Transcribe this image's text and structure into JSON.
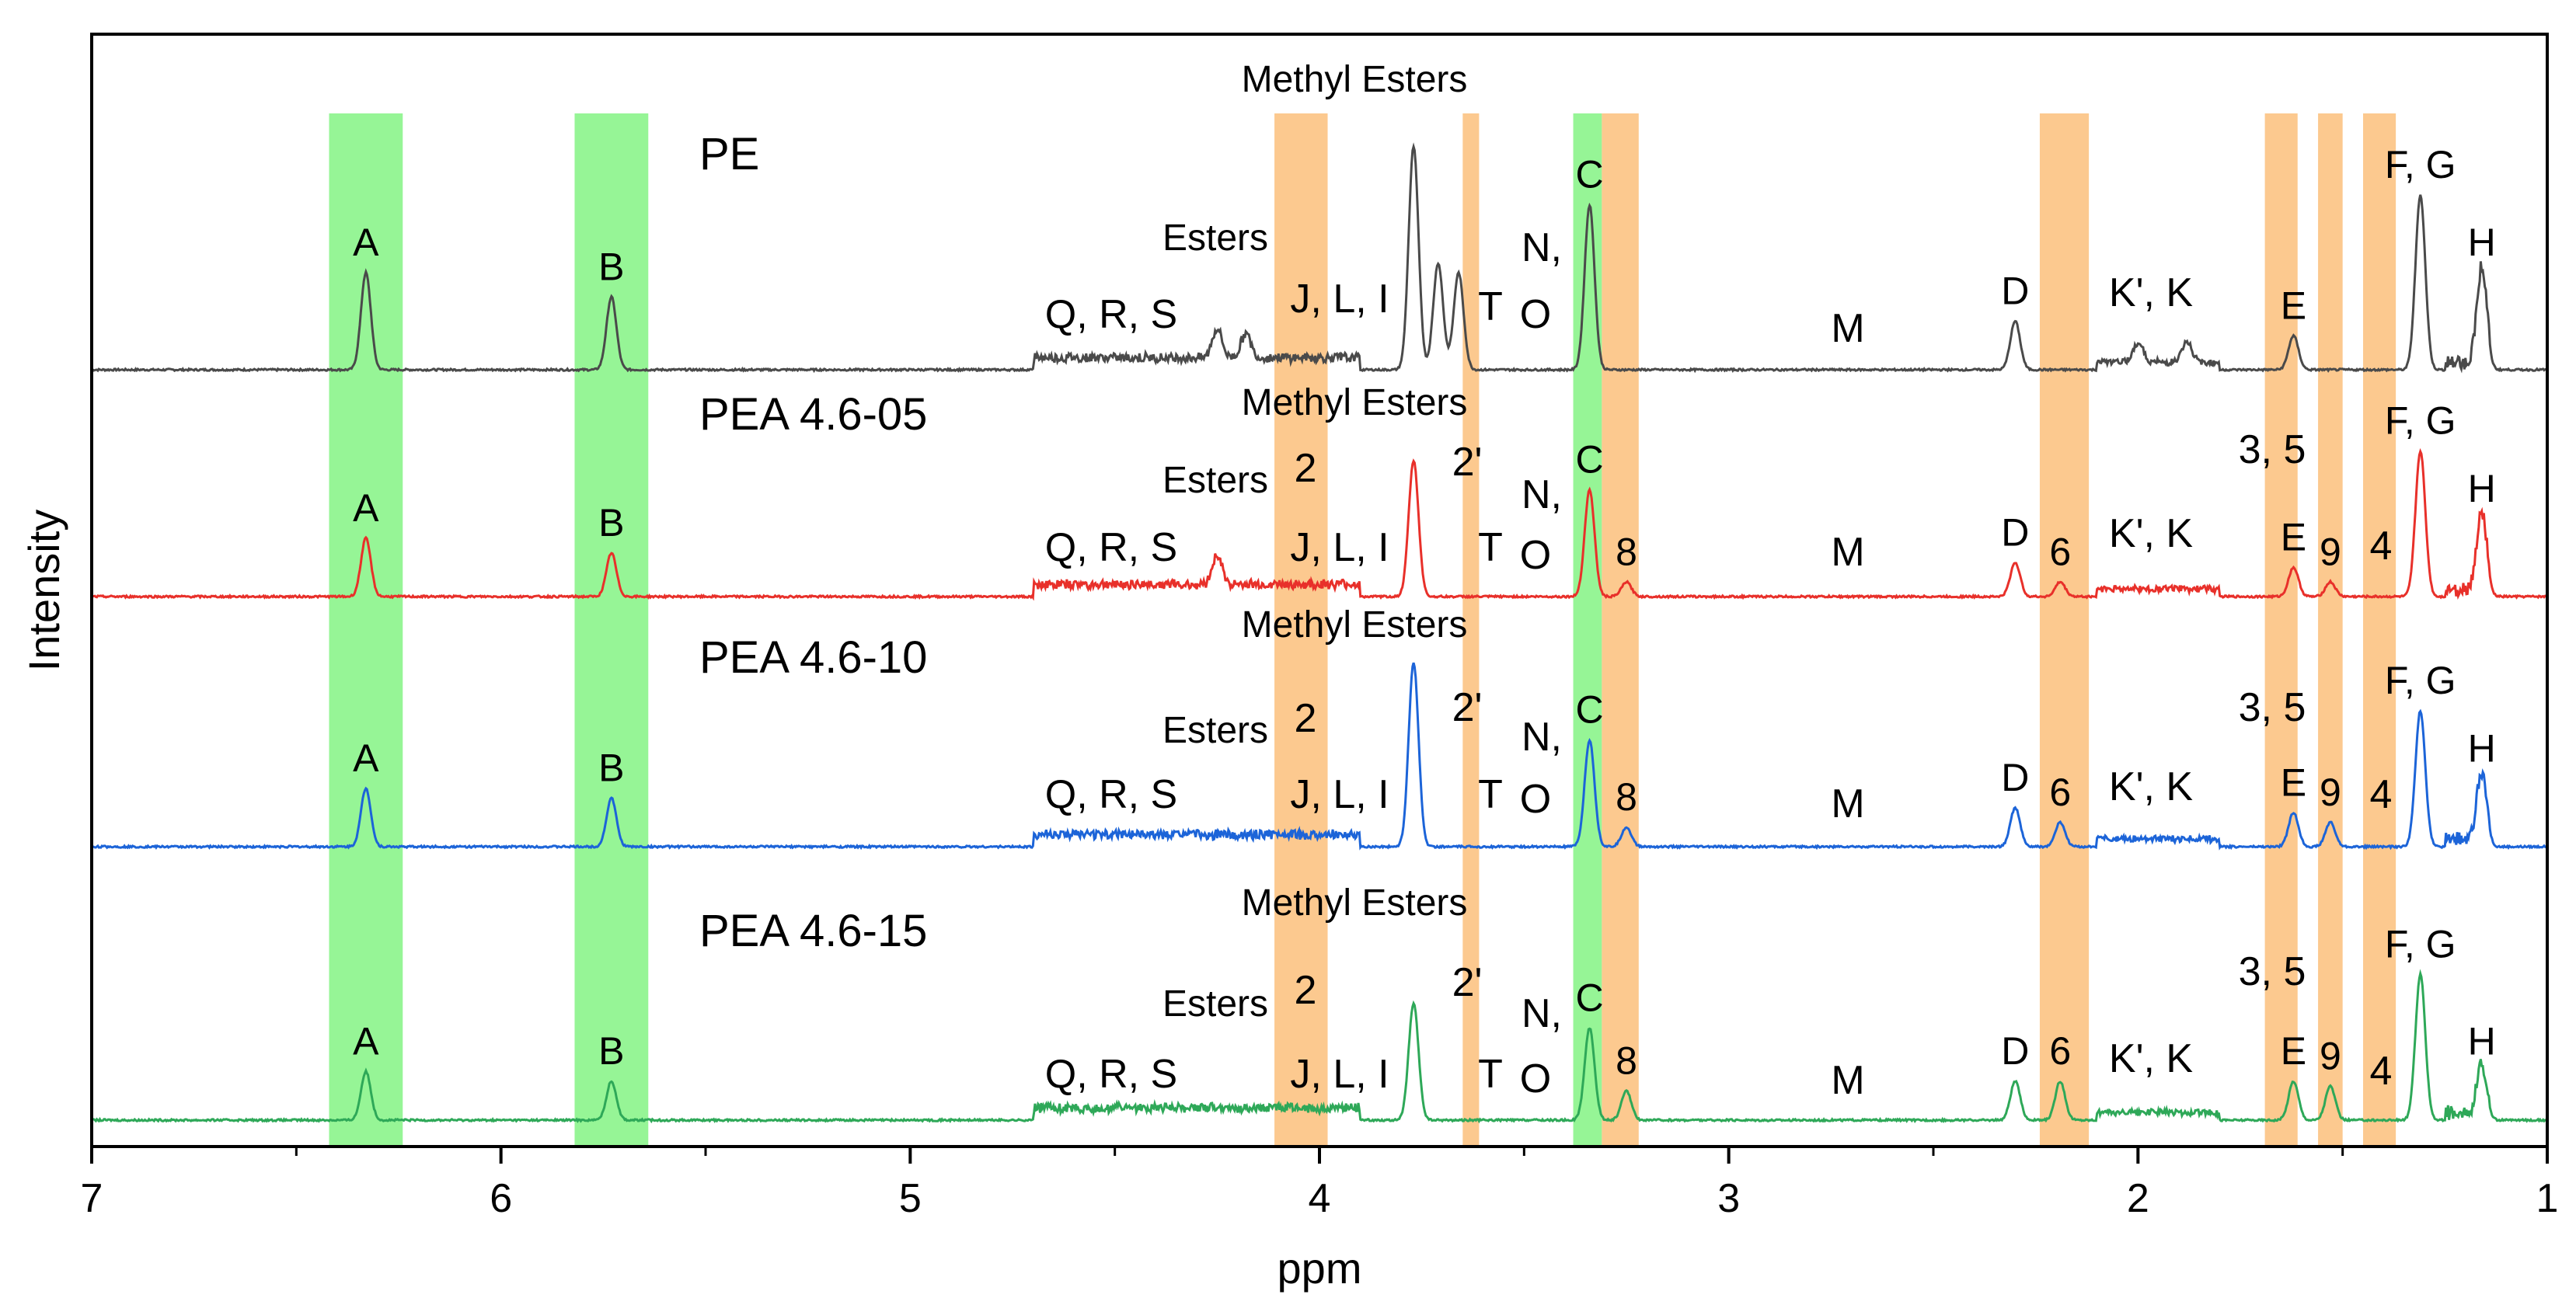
{
  "chart_data": {
    "type": "line",
    "title": "",
    "xlabel": "ppm",
    "ylabel": "Intensity",
    "xlim": [
      7,
      1
    ],
    "x_reversed": true,
    "x_ticks": [
      7,
      6,
      5,
      4,
      3,
      2,
      1
    ],
    "y_ticks": [],
    "grid": false,
    "colors": {
      "PE": "#4a4a4a",
      "PEA 4.6-05": "#e8302a",
      "PEA 4.6-10": "#1c64d8",
      "PEA 4.6-15": "#2ea858",
      "green_band": "#96f596",
      "orange_band": "#fcc98f"
    },
    "highlight_bands": [
      {
        "color": "green",
        "range": [
          6.42,
          6.24
        ]
      },
      {
        "color": "green",
        "range": [
          5.82,
          5.64
        ]
      },
      {
        "color": "orange",
        "range": [
          4.11,
          3.98
        ]
      },
      {
        "color": "orange",
        "range": [
          3.65,
          3.61
        ]
      },
      {
        "color": "green",
        "range": [
          3.38,
          3.31
        ]
      },
      {
        "color": "orange",
        "range": [
          3.31,
          3.22
        ]
      },
      {
        "color": "orange",
        "range": [
          2.24,
          2.12
        ]
      },
      {
        "color": "orange",
        "range": [
          1.69,
          1.61
        ]
      },
      {
        "color": "orange",
        "range": [
          1.56,
          1.5
        ]
      },
      {
        "color": "orange",
        "range": [
          1.45,
          1.37
        ]
      }
    ],
    "series": [
      {
        "name": "PE",
        "label": "PE",
        "peaks": [
          {
            "ppm": 6.33,
            "height": 1.0,
            "label": "A"
          },
          {
            "ppm": 5.73,
            "height": 0.75,
            "label": "B"
          },
          {
            "ppm": 4.25,
            "height": 0.3,
            "label": ""
          },
          {
            "ppm": 4.18,
            "height": 0.25,
            "label": ""
          },
          {
            "ppm": 3.77,
            "height": 2.3,
            "label": ""
          },
          {
            "ppm": 3.71,
            "height": 1.1,
            "label": ""
          },
          {
            "ppm": 3.66,
            "height": 1.0,
            "label": ""
          },
          {
            "ppm": 3.34,
            "height": 1.7,
            "label": "C"
          },
          {
            "ppm": 2.3,
            "height": 0.5,
            "label": "D"
          },
          {
            "ppm": 2.0,
            "height": 0.2,
            "label": ""
          },
          {
            "ppm": 1.88,
            "height": 0.2,
            "label": ""
          },
          {
            "ppm": 1.62,
            "height": 0.35,
            "label": "E"
          },
          {
            "ppm": 1.31,
            "height": 1.8,
            "label": "F, G"
          },
          {
            "ppm": 1.16,
            "height": 1.0,
            "label": "H"
          }
        ]
      },
      {
        "name": "PEA 4.6-05",
        "label": "PEA 4.6-05",
        "peaks": [
          {
            "ppm": 6.33,
            "height": 0.6,
            "label": "A"
          },
          {
            "ppm": 5.73,
            "height": 0.45,
            "label": "B"
          },
          {
            "ppm": 4.25,
            "height": 0.3,
            "label": ""
          },
          {
            "ppm": 3.77,
            "height": 1.4,
            "label": ""
          },
          {
            "ppm": 3.34,
            "height": 1.1,
            "label": "C"
          },
          {
            "ppm": 3.25,
            "height": 0.15,
            "label": "8"
          },
          {
            "ppm": 2.3,
            "height": 0.35,
            "label": "D"
          },
          {
            "ppm": 2.19,
            "height": 0.15,
            "label": "6"
          },
          {
            "ppm": 1.62,
            "height": 0.3,
            "label": "E"
          },
          {
            "ppm": 1.53,
            "height": 0.15,
            "label": "9"
          },
          {
            "ppm": 1.31,
            "height": 1.5,
            "label": "F, G"
          },
          {
            "ppm": 1.16,
            "height": 0.8,
            "label": "H"
          }
        ]
      },
      {
        "name": "PEA 4.6-10",
        "label": "PEA 4.6-10",
        "peaks": [
          {
            "ppm": 6.33,
            "height": 0.6,
            "label": "A"
          },
          {
            "ppm": 5.73,
            "height": 0.5,
            "label": "B"
          },
          {
            "ppm": 3.77,
            "height": 1.9,
            "label": ""
          },
          {
            "ppm": 3.34,
            "height": 1.1,
            "label": "C"
          },
          {
            "ppm": 3.25,
            "height": 0.2,
            "label": "8"
          },
          {
            "ppm": 2.3,
            "height": 0.4,
            "label": "D"
          },
          {
            "ppm": 2.19,
            "height": 0.25,
            "label": "6"
          },
          {
            "ppm": 1.62,
            "height": 0.35,
            "label": "E"
          },
          {
            "ppm": 1.53,
            "height": 0.25,
            "label": "9"
          },
          {
            "ppm": 1.31,
            "height": 1.4,
            "label": "F, G"
          },
          {
            "ppm": 1.16,
            "height": 0.7,
            "label": "H"
          }
        ]
      },
      {
        "name": "PEA 4.6-15",
        "label": "PEA 4.6-15",
        "peaks": [
          {
            "ppm": 6.33,
            "height": 0.5,
            "label": "A"
          },
          {
            "ppm": 5.73,
            "height": 0.4,
            "label": "B"
          },
          {
            "ppm": 3.77,
            "height": 1.2,
            "label": ""
          },
          {
            "ppm": 3.34,
            "height": 0.95,
            "label": "C"
          },
          {
            "ppm": 3.25,
            "height": 0.3,
            "label": "8"
          },
          {
            "ppm": 2.3,
            "height": 0.4,
            "label": "D"
          },
          {
            "ppm": 2.19,
            "height": 0.4,
            "label": "6"
          },
          {
            "ppm": 1.62,
            "height": 0.4,
            "label": "E"
          },
          {
            "ppm": 1.53,
            "height": 0.35,
            "label": "9"
          },
          {
            "ppm": 1.31,
            "height": 1.5,
            "label": "F, G"
          },
          {
            "ppm": 1.16,
            "height": 0.5,
            "label": "H"
          }
        ]
      }
    ],
    "annotations": [
      {
        "text": "Methyl Esters",
        "series": "PE"
      },
      {
        "text": "Esters",
        "series": "PE"
      },
      {
        "text": "Q, R, S",
        "series": "PE"
      },
      {
        "text": "J, L, I",
        "series": "PE"
      },
      {
        "text": "T",
        "series": "PE"
      },
      {
        "text": "N,",
        "series": "PE"
      },
      {
        "text": "O",
        "series": "PE"
      },
      {
        "text": "M",
        "series": "PE"
      },
      {
        "text": "K', K",
        "series": "PE"
      },
      {
        "text": "Methyl Esters",
        "series": "PEA 4.6-05"
      },
      {
        "text": "Esters",
        "series": "PEA 4.6-05"
      },
      {
        "text": "2",
        "series": "PEA 4.6-05"
      },
      {
        "text": "2'",
        "series": "PEA 4.6-05"
      },
      {
        "text": "Q, R, S",
        "series": "PEA 4.6-05"
      },
      {
        "text": "J, L, I",
        "series": "PEA 4.6-05"
      },
      {
        "text": "T",
        "series": "PEA 4.6-05"
      },
      {
        "text": "N,",
        "series": "PEA 4.6-05"
      },
      {
        "text": "O",
        "series": "PEA 4.6-05"
      },
      {
        "text": "M",
        "series": "PEA 4.6-05"
      },
      {
        "text": "K', K",
        "series": "PEA 4.6-05"
      },
      {
        "text": "3, 5",
        "series": "PEA 4.6-05"
      },
      {
        "text": "4",
        "series": "PEA 4.6-05"
      },
      {
        "text": "Methyl Esters",
        "series": "PEA 4.6-10"
      },
      {
        "text": "Esters",
        "series": "PEA 4.6-10"
      },
      {
        "text": "2",
        "series": "PEA 4.6-10"
      },
      {
        "text": "2'",
        "series": "PEA 4.6-10"
      },
      {
        "text": "Q, R, S",
        "series": "PEA 4.6-10"
      },
      {
        "text": "J, L, I",
        "series": "PEA 4.6-10"
      },
      {
        "text": "T",
        "series": "PEA 4.6-10"
      },
      {
        "text": "N,",
        "series": "PEA 4.6-10"
      },
      {
        "text": "O",
        "series": "PEA 4.6-10"
      },
      {
        "text": "M",
        "series": "PEA 4.6-10"
      },
      {
        "text": "K', K",
        "series": "PEA 4.6-10"
      },
      {
        "text": "3, 5",
        "series": "PEA 4.6-10"
      },
      {
        "text": "4",
        "series": "PEA 4.6-10"
      },
      {
        "text": "Methyl Esters",
        "series": "PEA 4.6-15"
      },
      {
        "text": "Esters",
        "series": "PEA 4.6-15"
      },
      {
        "text": "2",
        "series": "PEA 4.6-15"
      },
      {
        "text": "2'",
        "series": "PEA 4.6-15"
      },
      {
        "text": "Q, R, S",
        "series": "PEA 4.6-15"
      },
      {
        "text": "J, L, I",
        "series": "PEA 4.6-15"
      },
      {
        "text": "T",
        "series": "PEA 4.6-15"
      },
      {
        "text": "N,",
        "series": "PEA 4.6-15"
      },
      {
        "text": "O",
        "series": "PEA 4.6-15"
      },
      {
        "text": "M",
        "series": "PEA 4.6-15"
      },
      {
        "text": "K', K",
        "series": "PEA 4.6-15"
      },
      {
        "text": "3, 5",
        "series": "PEA 4.6-15"
      },
      {
        "text": "4",
        "series": "PEA 4.6-15"
      }
    ]
  }
}
